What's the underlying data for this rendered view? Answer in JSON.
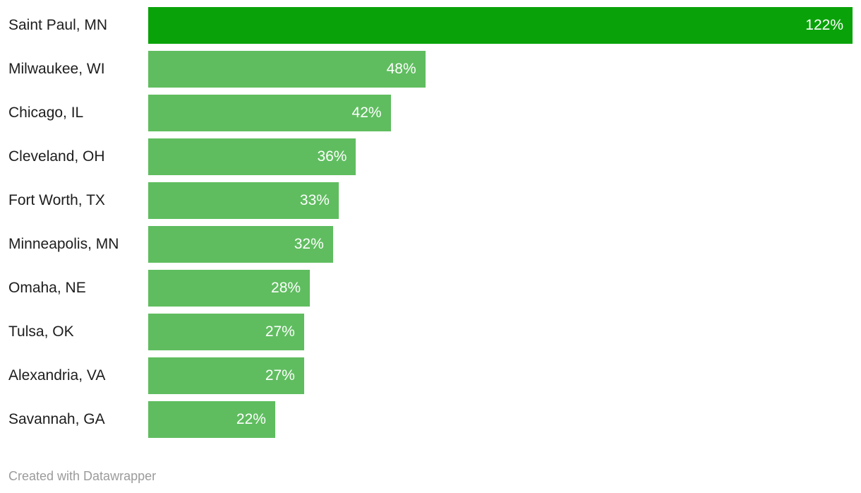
{
  "chart_data": {
    "type": "bar",
    "orientation": "horizontal",
    "title": "",
    "xlabel": "",
    "ylabel": "",
    "xlim": [
      0,
      122
    ],
    "grid": false,
    "legend": false,
    "categories": [
      "Saint Paul, MN",
      "Milwaukee, WI",
      "Chicago, IL",
      "Cleveland, OH",
      "Fort Worth, TX",
      "Minneapolis, MN",
      "Omaha, NE",
      "Tulsa, OK",
      "Alexandria, VA",
      "Savannah, GA"
    ],
    "values": [
      122,
      48,
      42,
      36,
      33,
      32,
      28,
      27,
      27,
      22
    ],
    "value_labels": [
      "122%",
      "48%",
      "42%",
      "36%",
      "33%",
      "32%",
      "28%",
      "27%",
      "27%",
      "22%"
    ],
    "highlight_index": 0,
    "colors": {
      "highlight_bar": "#09a309",
      "bar": "#5fbd5f",
      "label_text": "#1d1d1d",
      "value_text": "#ffffff"
    }
  },
  "footer": {
    "credit": "Created with Datawrapper"
  }
}
